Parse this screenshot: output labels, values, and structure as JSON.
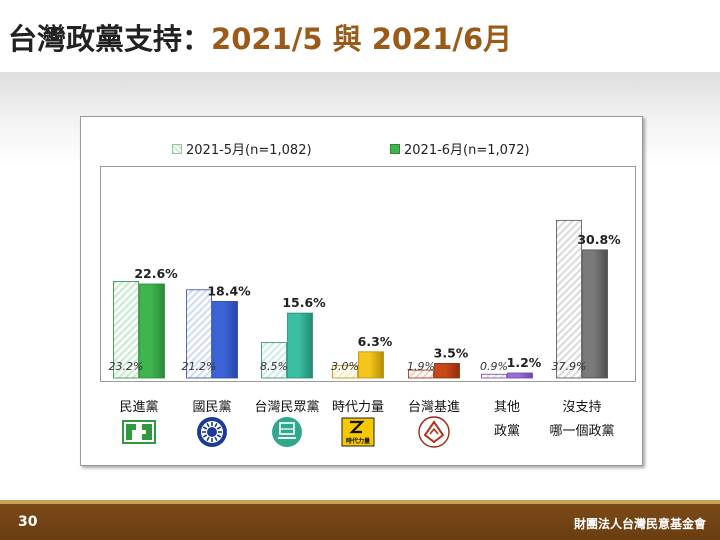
{
  "slide": {
    "title_prefix": "台灣政黨支持：",
    "title_accent": "2021/5 與 2021/6月",
    "page_number": "30",
    "organization": "財團法人台灣民意基金會"
  },
  "colors": {
    "footer_bg": "#6a3d10",
    "title_accent": "#9a5b1a",
    "may_pattern": "hatched",
    "jun_solid": "varies by party"
  },
  "chart_data": {
    "type": "bar",
    "legend_position": "top",
    "grid": false,
    "ylim": [
      0,
      40
    ],
    "series": [
      {
        "name": "2021-5月(n=1,082)",
        "values": [
          23.2,
          21.2,
          8.5,
          3.0,
          1.9,
          0.9,
          37.9
        ]
      },
      {
        "name": "2021-6月(n=1,072)",
        "values": [
          22.6,
          18.4,
          15.6,
          6.3,
          3.5,
          1.2,
          30.8
        ]
      }
    ],
    "categories": [
      {
        "lines": [
          "民進黨"
        ],
        "logo": "dpp-logo-icon",
        "color": "#3fb54f",
        "light": "#c9ecd0",
        "edge": "#2a8a39",
        "logo_text": ""
      },
      {
        "lines": [
          "國民黨"
        ],
        "logo": "kmt-logo-icon",
        "color": "#3c63d6",
        "light": "#d2dcf7",
        "edge": "#2747a8",
        "logo_text": ""
      },
      {
        "lines": [
          "台灣民眾黨"
        ],
        "logo": "tpp-logo-icon",
        "color": "#3bbfa3",
        "light": "#cdeee6",
        "edge": "#238a73",
        "logo_text": ""
      },
      {
        "lines": [
          "時代力量"
        ],
        "logo": "npp-logo-icon",
        "color": "#f3c51d",
        "light": "#fbefc2",
        "edge": "#b88e00",
        "logo_text": "時代力量"
      },
      {
        "lines": [
          "台灣基進"
        ],
        "logo": "tsp-logo-icon",
        "color": "#c8481a",
        "light": "#f3d2c6",
        "edge": "#8f2d0b",
        "logo_text": ""
      },
      {
        "lines": [
          "其他",
          "政黨"
        ],
        "logo": "",
        "color": "#9b6fd6",
        "light": "#e7dcf7",
        "edge": "#6a47a8",
        "logo_text": ""
      },
      {
        "lines": [
          "沒支持",
          "哪一個政黨"
        ],
        "logo": "",
        "color": "#7a7a7a",
        "light": "#dcdcdc",
        "edge": "#4f4f4f",
        "logo_text": ""
      }
    ]
  }
}
